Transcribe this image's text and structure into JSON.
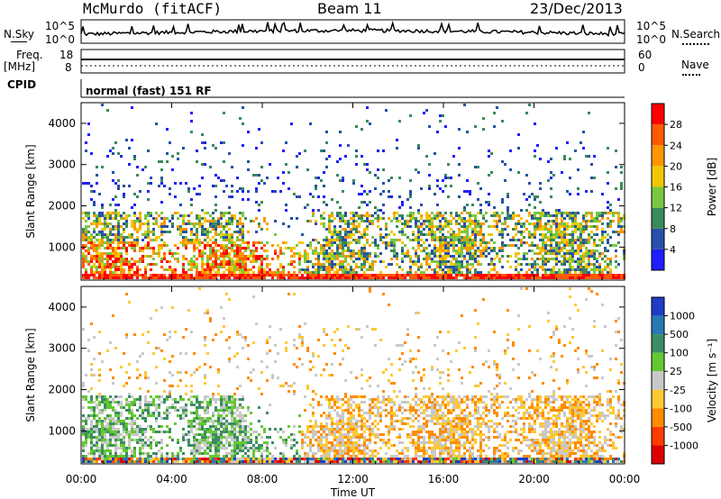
{
  "header": {
    "station": "McMurdo (fitACF)",
    "beam": "Beam 11",
    "date": "23/Dec/2013"
  },
  "noise_panel": {
    "left_label": "N.Sky",
    "left_ticks": [
      "10^5",
      "10^0"
    ],
    "right_label": "N.Search",
    "right_ticks": [
      "10^5",
      "10^0"
    ]
  },
  "freq_panel": {
    "left_label_1": "Freq.",
    "left_label_2": "[MHz]",
    "left_ticks": [
      "18",
      "8"
    ],
    "right_label": "Nave",
    "right_ticks": [
      "60",
      "0"
    ]
  },
  "cpid_panel": {
    "label": "CPID",
    "text": "normal (fast) 151 RF"
  },
  "chart_data": [
    {
      "type": "heatmap",
      "name": "power",
      "ylabel": "Slant Range [km]",
      "ylim": [
        200,
        4500
      ],
      "yticks": [
        "1000",
        "2000",
        "3000",
        "4000"
      ],
      "xlabel": "Time UT",
      "xticks": [
        "00:00",
        "04:00",
        "08:00",
        "12:00",
        "16:00",
        "20:00",
        "00:00"
      ],
      "colorbar": {
        "label": "Power [dB]",
        "ticks": [
          "4",
          "8",
          "12",
          "16",
          "20",
          "24",
          "28"
        ],
        "colors": [
          "#1e1eff",
          "#2850a8",
          "#3a8a5a",
          "#78c840",
          "#f0c800",
          "#ff9600",
          "#ff5a00",
          "#ff0000"
        ]
      }
    },
    {
      "type": "heatmap",
      "name": "velocity",
      "ylabel": "Slant Range [km]",
      "ylim": [
        200,
        4500
      ],
      "yticks": [
        "1000",
        "2000",
        "3000",
        "4000"
      ],
      "xlabel": "Time UT",
      "xticks": [
        "00:00",
        "04:00",
        "08:00",
        "12:00",
        "16:00",
        "20:00",
        "00:00"
      ],
      "colorbar": {
        "label": "Velocity [m s⁻¹]",
        "ticks": [
          "1000",
          "500",
          "100",
          "25",
          "-25",
          "-100",
          "-500",
          "-1000"
        ],
        "colors": [
          "#1e3cc8",
          "#2878b4",
          "#3c8c64",
          "#64c832",
          "#c8c8c8",
          "#ffc832",
          "#ff8c00",
          "#ff3c00",
          "#dc0000"
        ]
      }
    }
  ]
}
